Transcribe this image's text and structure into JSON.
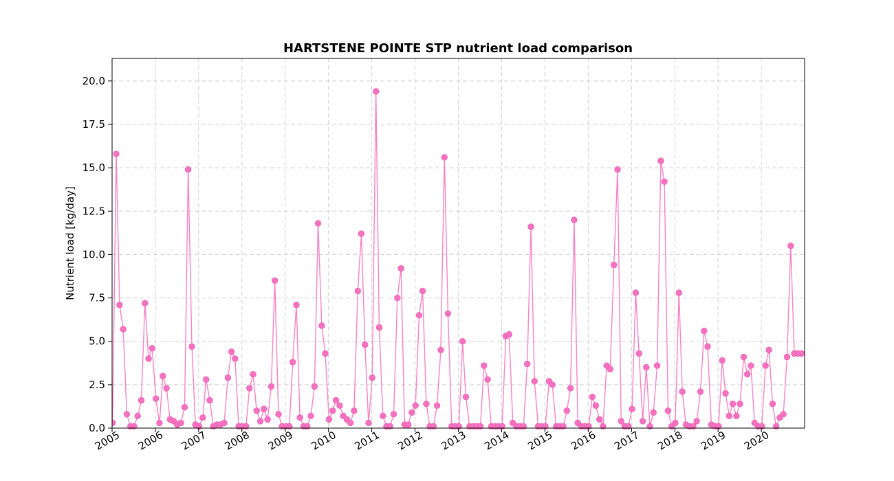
{
  "chart_data": {
    "type": "line",
    "title": "HARTSTENE POINTE STP nutrient load comparison",
    "xlabel": "",
    "ylabel": "Nutrient load [kg/day]",
    "xlim": [
      "2005-01-01",
      "2020-12-31"
    ],
    "ylim": [
      0,
      21.3
    ],
    "y_ticks": [
      0.0,
      2.5,
      5.0,
      7.5,
      10.0,
      12.5,
      15.0,
      17.5,
      20.0
    ],
    "x_ticks": [
      "2005",
      "2006",
      "2007",
      "2008",
      "2009",
      "2010",
      "2011",
      "2012",
      "2013",
      "2014",
      "2015",
      "2016",
      "2017",
      "2018",
      "2019",
      "2020"
    ],
    "grid": true,
    "color": "#f472c0",
    "series": [
      {
        "x": [
          "2005-01",
          "2005-02",
          "2005-03",
          "2005-04",
          "2005-05",
          "2005-06",
          "2005-07",
          "2005-08",
          "2005-09",
          "2005-10",
          "2005-11",
          "2005-12",
          "2006-01",
          "2006-02",
          "2006-03",
          "2006-04",
          "2006-05",
          "2006-06",
          "2006-07",
          "2006-08",
          "2006-09",
          "2006-10",
          "2006-11",
          "2006-12",
          "2007-01",
          "2007-02",
          "2007-03",
          "2007-04",
          "2007-05",
          "2007-06",
          "2007-07",
          "2007-08",
          "2007-09",
          "2007-10",
          "2007-11",
          "2007-12",
          "2008-01",
          "2008-02",
          "2008-03",
          "2008-04",
          "2008-05",
          "2008-06",
          "2008-07",
          "2008-08",
          "2008-09",
          "2008-10",
          "2008-11",
          "2008-12",
          "2009-01",
          "2009-02",
          "2009-03",
          "2009-04",
          "2009-05",
          "2009-06",
          "2009-07",
          "2009-08",
          "2009-09",
          "2009-10",
          "2009-11",
          "2009-12",
          "2010-01",
          "2010-02",
          "2010-03",
          "2010-04",
          "2010-05",
          "2010-06",
          "2010-07",
          "2010-08",
          "2010-09",
          "2010-10",
          "2010-11",
          "2010-12",
          "2011-01",
          "2011-02",
          "2011-03",
          "2011-04",
          "2011-05",
          "2011-06",
          "2011-07",
          "2011-08",
          "2011-09",
          "2011-10",
          "2011-11",
          "2011-12",
          "2012-01",
          "2012-02",
          "2012-03",
          "2012-04",
          "2012-05",
          "2012-06",
          "2012-07",
          "2012-08",
          "2012-09",
          "2012-10",
          "2012-11",
          "2012-12",
          "2013-01",
          "2013-02",
          "2013-03",
          "2013-04",
          "2013-05",
          "2013-06",
          "2013-07",
          "2013-08",
          "2013-09",
          "2013-10",
          "2013-11",
          "2013-12",
          "2014-01",
          "2014-02",
          "2014-03",
          "2014-04",
          "2014-05",
          "2014-06",
          "2014-07",
          "2014-08",
          "2014-09",
          "2014-10",
          "2014-11",
          "2014-12",
          "2015-01",
          "2015-02",
          "2015-03",
          "2015-04",
          "2015-05",
          "2015-06",
          "2015-07",
          "2015-08",
          "2015-09",
          "2015-10",
          "2015-11",
          "2015-12",
          "2016-01",
          "2016-02",
          "2016-03",
          "2016-04",
          "2016-05",
          "2016-06",
          "2016-07",
          "2016-08",
          "2016-09",
          "2016-10",
          "2016-11",
          "2016-12",
          "2017-01",
          "2017-02",
          "2017-03",
          "2017-04",
          "2017-05",
          "2017-06",
          "2017-07",
          "2017-08",
          "2017-09",
          "2017-10",
          "2017-11",
          "2017-12",
          "2018-01",
          "2018-02",
          "2018-03",
          "2018-04",
          "2018-05",
          "2018-06",
          "2018-07",
          "2018-08",
          "2018-09",
          "2018-10",
          "2018-11",
          "2018-12",
          "2019-01",
          "2019-02",
          "2019-03",
          "2019-04",
          "2019-05",
          "2019-06",
          "2019-07",
          "2019-08",
          "2019-09",
          "2019-10",
          "2019-11",
          "2019-12",
          "2020-01",
          "2020-02",
          "2020-03",
          "2020-04",
          "2020-05",
          "2020-06",
          "2020-07",
          "2020-08",
          "2020-09",
          "2020-10",
          "2020-11",
          "2020-12"
        ],
        "y": [
          0.3,
          15.8,
          7.1,
          5.7,
          0.8,
          0.1,
          0.1,
          0.7,
          1.6,
          7.2,
          4.0,
          4.6,
          1.7,
          0.3,
          3.0,
          2.3,
          0.5,
          0.4,
          0.2,
          0.3,
          1.2,
          14.9,
          4.7,
          0.2,
          0.1,
          0.6,
          2.8,
          1.6,
          0.1,
          0.2,
          0.2,
          0.3,
          2.9,
          4.4,
          4.0,
          0.1,
          0.1,
          0.1,
          2.3,
          3.1,
          1.0,
          0.4,
          1.1,
          0.5,
          2.4,
          8.5,
          0.8,
          0.1,
          0.1,
          0.1,
          3.8,
          7.1,
          0.6,
          0.1,
          0.1,
          0.7,
          2.4,
          11.8,
          5.9,
          4.3,
          0.5,
          1.0,
          1.6,
          1.3,
          0.7,
          0.5,
          0.3,
          1.0,
          7.9,
          11.2,
          4.8,
          0.3,
          2.9,
          19.4,
          5.8,
          0.7,
          0.1,
          0.1,
          0.8,
          7.5,
          9.2,
          0.2,
          0.2,
          0.9,
          1.3,
          6.5,
          7.9,
          1.4,
          0.1,
          0.1,
          1.3,
          4.5,
          15.6,
          6.6,
          0.1,
          0.1,
          0.1,
          5.0,
          1.8,
          0.1,
          0.1,
          0.1,
          0.1,
          3.6,
          2.8,
          0.1,
          0.1,
          0.1,
          0.1,
          5.3,
          5.4,
          0.3,
          0.1,
          0.1,
          0.1,
          3.7,
          11.6,
          2.7,
          0.1,
          0.1,
          0.1,
          2.7,
          2.5,
          0.1,
          0.1,
          0.1,
          1.0,
          2.3,
          12.0,
          0.3,
          0.1,
          0.1,
          0.1,
          1.8,
          1.3,
          0.5,
          0.1,
          3.6,
          3.4,
          9.4,
          14.9,
          0.4,
          0.1,
          0.1,
          1.1,
          7.8,
          4.3,
          0.4,
          3.5,
          0.1,
          0.9,
          3.6,
          15.4,
          14.2,
          1.0,
          0.1,
          0.3,
          7.8,
          2.1,
          0.2,
          0.1,
          0.1,
          0.4,
          2.1,
          5.6,
          4.7,
          0.2,
          0.1,
          0.1,
          3.9,
          2.0,
          0.7,
          1.4,
          0.7,
          1.4,
          4.1,
          3.1,
          3.6,
          0.3,
          0.1,
          0.1,
          3.6,
          4.5,
          1.4,
          0.1,
          0.6,
          0.8,
          4.1,
          10.5,
          4.3,
          4.3,
          4.3
        ]
      }
    ]
  }
}
